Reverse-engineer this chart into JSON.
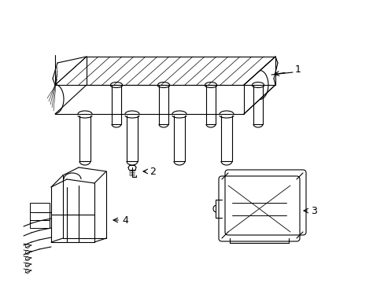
{
  "background_color": "#ffffff",
  "line_color": "#000000",
  "line_width": 0.8,
  "fig_width": 4.89,
  "fig_height": 3.6,
  "dpi": 100
}
